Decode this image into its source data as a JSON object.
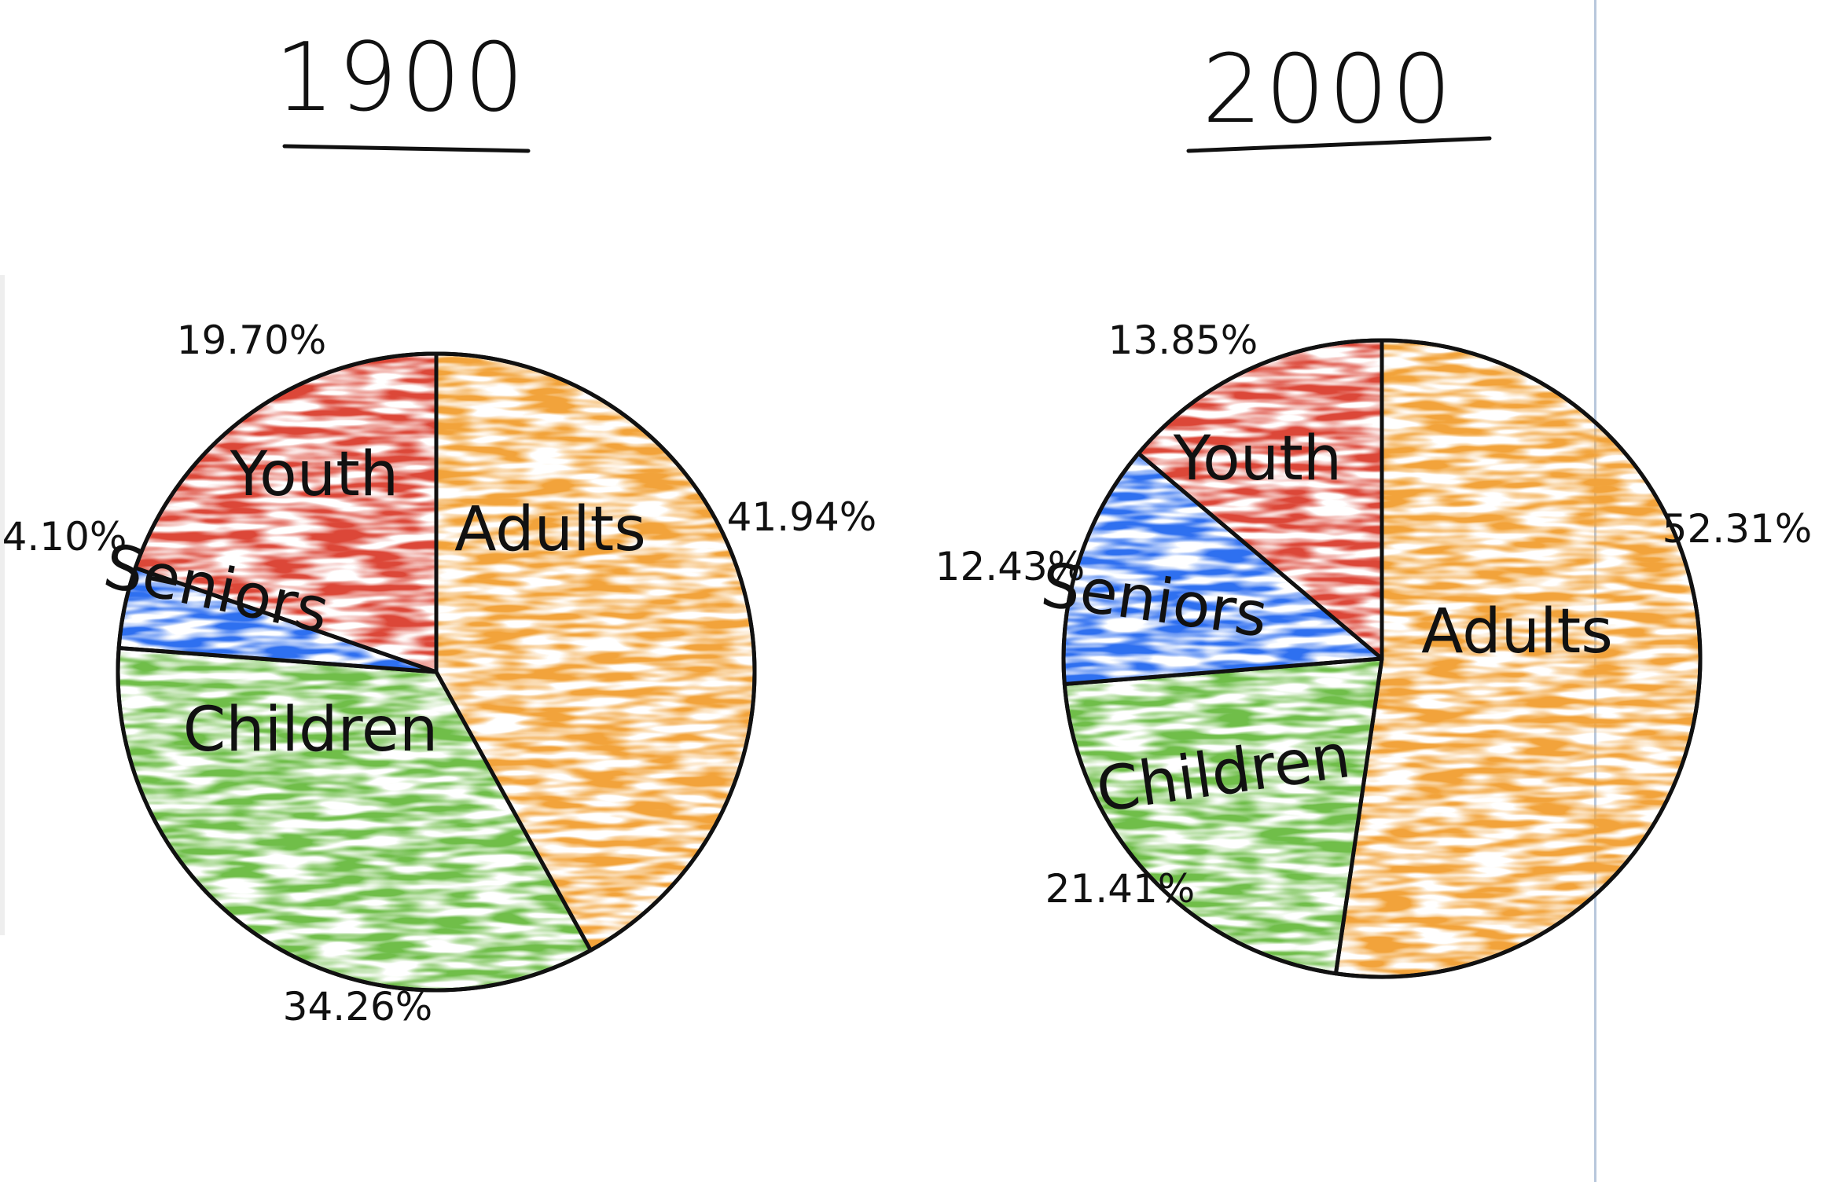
{
  "chart_data": [
    {
      "type": "pie",
      "title": "1900",
      "slices": [
        {
          "label": "Adults",
          "value": 41.94,
          "value_label": "41.94%",
          "color": "#F2A33A"
        },
        {
          "label": "Children",
          "value": 34.26,
          "value_label": "34.26%",
          "color": "#6FBE4A"
        },
        {
          "label": "Seniors",
          "value": 4.1,
          "value_label": "4.10%",
          "color": "#2F6FF0"
        },
        {
          "label": "Youth",
          "value": 19.7,
          "value_label": "19.70%",
          "color": "#DC4637"
        }
      ]
    },
    {
      "type": "pie",
      "title": "2000",
      "slices": [
        {
          "label": "Adults",
          "value": 52.31,
          "value_label": "52.31%",
          "color": "#F2A33A"
        },
        {
          "label": "Children",
          "value": 21.41,
          "value_label": "21.41%",
          "color": "#6FBE4A"
        },
        {
          "label": "Seniors",
          "value": 12.43,
          "value_label": "12.43%",
          "color": "#2F6FF0"
        },
        {
          "label": "Youth",
          "value": 13.85,
          "value_label": "13.85%",
          "color": "#DC4637"
        }
      ]
    }
  ]
}
